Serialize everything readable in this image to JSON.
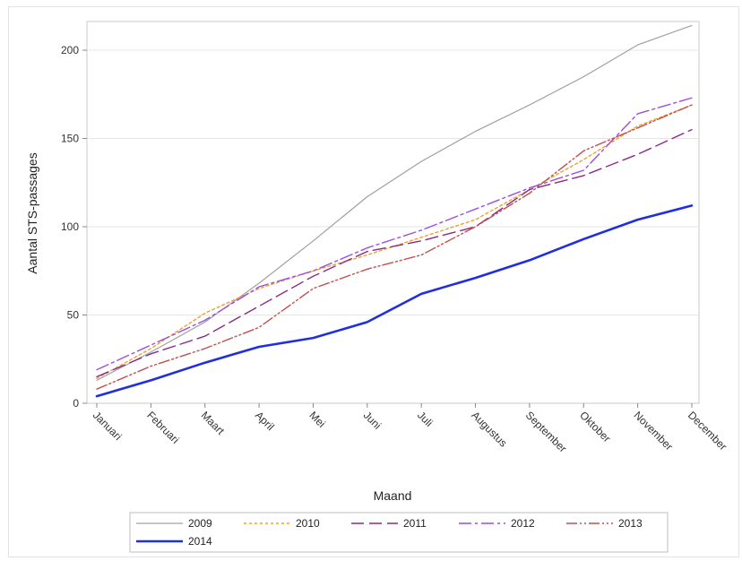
{
  "chart_data": {
    "type": "line",
    "title": "",
    "xlabel": "Maand",
    "ylabel": "Aantal STS-passages",
    "categories": [
      "Januari",
      "Februari",
      "Maart",
      "April",
      "Mei",
      "Juni",
      "Juli",
      "Augustus",
      "September",
      "Oktober",
      "November",
      "December"
    ],
    "y_ticks": [
      0,
      50,
      100,
      150,
      200
    ],
    "ylim": [
      0,
      220
    ],
    "grid": "horizontal",
    "legend_position": "bottom",
    "series": [
      {
        "name": "2009",
        "color": "#a0a0a0",
        "style": "solid",
        "width": 1.2,
        "values": [
          13,
          29,
          46,
          68,
          92,
          117,
          137,
          154,
          169,
          185,
          203,
          214
        ]
      },
      {
        "name": "2010",
        "color": "#f0a030",
        "style": "dotted",
        "width": 1.4,
        "values": [
          14,
          31,
          51,
          65,
          75,
          84,
          94,
          104,
          121,
          138,
          157,
          169
        ]
      },
      {
        "name": "2011",
        "color": "#8b2a8b",
        "style": "dashed",
        "width": 1.4,
        "values": [
          15,
          28,
          38,
          55,
          72,
          86,
          92,
          100,
          121,
          129,
          141,
          155
        ]
      },
      {
        "name": "2012",
        "color": "#9b4fe0",
        "style": "dashdot",
        "width": 1.4,
        "values": [
          19,
          33,
          47,
          66,
          75,
          88,
          98,
          110,
          122,
          132,
          164,
          173
        ]
      },
      {
        "name": "2013",
        "color": "#c0504d",
        "style": "dashdotdot",
        "width": 1.4,
        "values": [
          8,
          21,
          31,
          43,
          65,
          76,
          84,
          100,
          119,
          143,
          156,
          169
        ]
      },
      {
        "name": "2014",
        "color": "#1f2fe0",
        "style": "solid",
        "width": 2.6,
        "values": [
          4,
          13,
          23,
          32,
          37,
          46,
          62,
          71,
          81,
          93,
          104,
          112
        ]
      }
    ]
  }
}
